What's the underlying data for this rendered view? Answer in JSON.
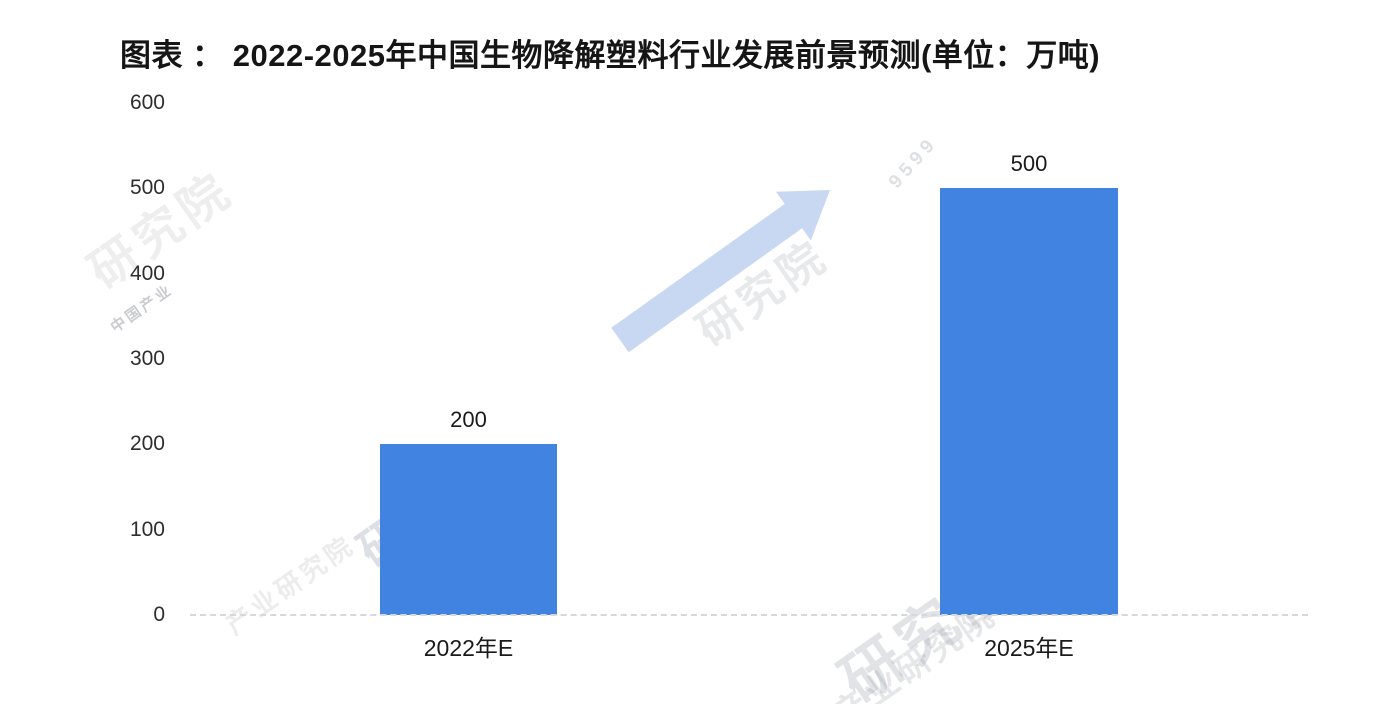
{
  "header": {
    "title": "图表 ： 2022-2025年中国生物降解塑料行业发展前景预测(单位：万吨)"
  },
  "chart_data": {
    "type": "bar",
    "title": "2022-2025年中国生物降解塑料行业发展前景预测",
    "unit_label": "单位：万吨",
    "categories": [
      "2022年E",
      "2025年E"
    ],
    "values": [
      200,
      500
    ],
    "data_labels": [
      "200",
      "500"
    ],
    "ylim": [
      0,
      600
    ],
    "yticks": [
      600,
      500,
      400,
      300,
      200,
      100,
      0
    ],
    "ytick_labels": [
      "600",
      "500",
      "400",
      "300",
      "200",
      "100",
      "0"
    ],
    "xlabel": "",
    "ylabel": "",
    "grid": false,
    "legend": "none",
    "bar_color": "#4183e0",
    "annotation": "light blue upward trend arrow between the two bars"
  },
  "watermarks": {
    "institute": "研究院",
    "institute_long": "产业研究院",
    "small_left": "中国产业",
    "digits": "839599",
    "digits_short": "9599"
  },
  "colors": {
    "bar": "#4183e0",
    "arrow": "#c8d8f2",
    "baseline": "#d8d8d8",
    "text": "#1a1a1a"
  }
}
